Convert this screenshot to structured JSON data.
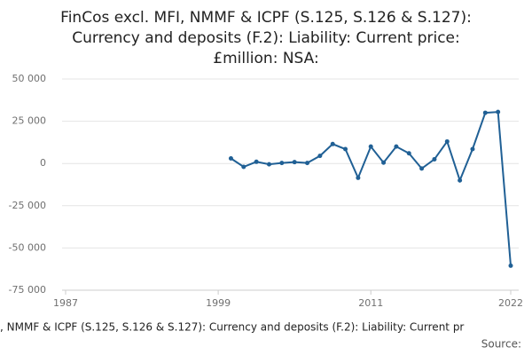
{
  "chart_data": {
    "type": "line",
    "title": [
      "FinCos excl. MFI, NMMF & ICPF (S.125, S.126 & S.127):",
      "Currency and deposits (F.2): Liability: Current price:",
      "£million: NSA:"
    ],
    "x": [
      2000,
      2001,
      2002,
      2003,
      2004,
      2005,
      2006,
      2007,
      2008,
      2009,
      2010,
      2011,
      2012,
      2013,
      2014,
      2015,
      2016,
      2017,
      2018,
      2019,
      2020,
      2021,
      2022
    ],
    "series": [
      {
        "name": ", NMMF & ICPF (S.125, S.126 & S.127): Currency and deposits (F.2): Liability: Current pr",
        "color": "#206095",
        "values": [
          3000,
          -2000,
          1000,
          -500,
          300,
          800,
          300,
          4500,
          11500,
          8500,
          -8500,
          10000,
          500,
          10000,
          6000,
          -3000,
          2500,
          13000,
          -10000,
          8500,
          30000,
          30500,
          -60500
        ]
      }
    ],
    "xlim": [
      1987,
      2022
    ],
    "xticks": [
      1987,
      1999,
      2011,
      2022
    ],
    "ylim": [
      -75000,
      50000
    ],
    "yticks": [
      {
        "value": -75000,
        "label": "-75 000"
      },
      {
        "value": -50000,
        "label": "-50 000"
      },
      {
        "value": -25000,
        "label": "-25 000"
      },
      0,
      {
        "value": 25000,
        "label": "25 000"
      },
      {
        "value": 50000,
        "label": "50 000"
      }
    ],
    "grid": true,
    "source": "Source:"
  }
}
